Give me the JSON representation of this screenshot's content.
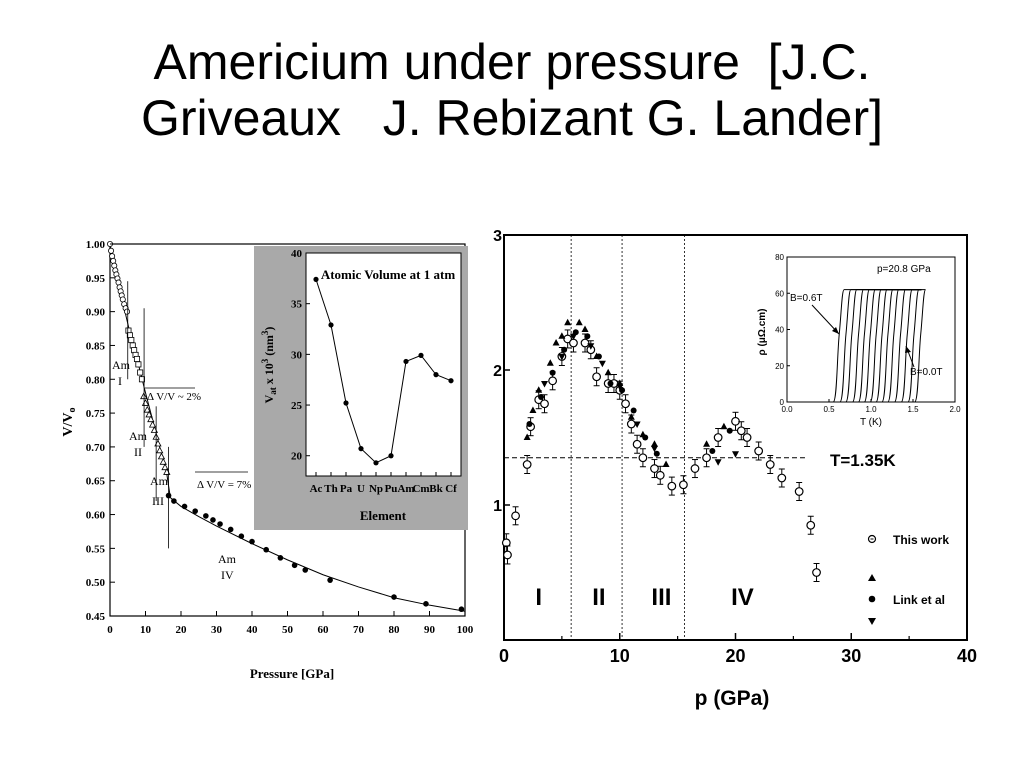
{
  "slide": {
    "title_line1": "Americium under pressure  [J.C.",
    "title_line2": "Griveaux   J. Rebizant G. Lander]"
  },
  "chart_data": [
    {
      "type": "scatter",
      "id": "volume-vs-pressure",
      "xlabel": "Pressure [GPa]",
      "ylabel": "V/V",
      "ylabel_sub": "o",
      "xlim": [
        0,
        100
      ],
      "ylim": [
        0.45,
        1.0
      ],
      "xticks": [
        0,
        10,
        20,
        30,
        40,
        50,
        60,
        70,
        80,
        90,
        100
      ],
      "yticks": [
        0.45,
        0.5,
        0.55,
        0.6,
        0.65,
        0.7,
        0.75,
        0.8,
        0.85,
        0.9,
        0.95,
        1.0
      ],
      "ytick_labels": [
        "0.45",
        "0.50",
        "0.55",
        "0.60",
        "0.65",
        "0.70",
        "0.75",
        "0.80",
        "0.85",
        "0.90",
        "0.95",
        "1.00"
      ],
      "series": [
        {
          "marker": "circle-open",
          "x": [
            0,
            0.3,
            0.6,
            0.9,
            1.2,
            1.5,
            1.8,
            2.1,
            2.4,
            2.7,
            3.0,
            3.3,
            3.6,
            4.0,
            4.4,
            4.8
          ],
          "y": [
            1.0,
            0.99,
            0.982,
            0.975,
            0.968,
            0.961,
            0.955,
            0.949,
            0.943,
            0.936,
            0.93,
            0.924,
            0.918,
            0.911,
            0.905,
            0.9
          ]
        },
        {
          "marker": "square-open",
          "x": [
            5.2,
            5.6,
            6.0,
            6.4,
            6.8,
            7.2,
            7.6,
            8.0,
            8.5,
            9.0
          ],
          "y": [
            0.872,
            0.865,
            0.858,
            0.85,
            0.843,
            0.836,
            0.83,
            0.822,
            0.81,
            0.8
          ]
        },
        {
          "marker": "triangle-open",
          "x": [
            9.5,
            10.0,
            10.5,
            11.0,
            11.5,
            12.0,
            12.5,
            13.0,
            13.5,
            14.0,
            14.5,
            15.0,
            15.5,
            16.0
          ],
          "y": [
            0.775,
            0.765,
            0.755,
            0.748,
            0.741,
            0.733,
            0.725,
            0.715,
            0.705,
            0.695,
            0.686,
            0.678,
            0.67,
            0.663
          ]
        },
        {
          "marker": "circle-filled",
          "x": [
            16.5,
            18,
            21,
            24,
            27,
            29,
            31,
            34,
            37,
            40,
            44,
            48,
            52,
            55,
            62,
            80,
            89,
            99
          ],
          "y": [
            0.628,
            0.62,
            0.612,
            0.605,
            0.598,
            0.592,
            0.586,
            0.578,
            0.568,
            0.56,
            0.548,
            0.536,
            0.525,
            0.518,
            0.503,
            0.478,
            0.468,
            0.46
          ]
        }
      ],
      "fit_curve": {
        "x": [
          0,
          2,
          4,
          6,
          8,
          10,
          12,
          14,
          16,
          17,
          20,
          25,
          30,
          40,
          50,
          60,
          70,
          80,
          90,
          100
        ],
        "y": [
          1.0,
          0.945,
          0.905,
          0.86,
          0.822,
          0.78,
          0.74,
          0.7,
          0.66,
          0.625,
          0.612,
          0.597,
          0.583,
          0.557,
          0.533,
          0.511,
          0.493,
          0.477,
          0.466,
          0.457
        ]
      },
      "annotations": {
        "am1_label_a": "Am",
        "am1_label_b": "I",
        "am2_label_a": "Am",
        "am2_label_b": "II",
        "am3_label_a": "Am",
        "am3_label_b": "III",
        "am4_label_a": "Am",
        "am4_label_b": "IV",
        "dv1": "Δ V/V ~ 2%",
        "dv2": "Δ V/V = 7%"
      }
    },
    {
      "type": "line",
      "id": "atomic-volume-inset",
      "title": "Atomic Volume at 1 atm",
      "xlabel": "Element",
      "ylabel": "V",
      "ylabel_sub": "at",
      "ylabel_rest": " x 10",
      "ylabel_sup": "3",
      "ylabel_unit": " (nm",
      "ylabel_unit_sup": "3",
      "ylabel_end": ")",
      "categories": [
        "Ac",
        "Th",
        "Pa",
        "U",
        "Np",
        "Pu",
        "Am",
        "Cm",
        "Bk",
        "Cf"
      ],
      "values": [
        37.4,
        32.9,
        25.2,
        20.7,
        19.3,
        20.0,
        29.3,
        29.9,
        28.0,
        27.4
      ],
      "ylim": [
        18,
        40
      ],
      "yticks": [
        20,
        25,
        30,
        35,
        40
      ]
    },
    {
      "type": "scatter",
      "id": "tc-vs-pressure",
      "xlabel": "p (GPa)",
      "xlim": [
        0,
        40
      ],
      "ylim": [
        0,
        3
      ],
      "xticks": [
        0,
        10,
        20,
        30,
        40
      ],
      "yticks": [
        1,
        2,
        3
      ],
      "ytick_labels": [
        "1",
        "2",
        "3"
      ],
      "threshold": {
        "y": 1.35,
        "label": "T=1.35K"
      },
      "phase_boundaries": [
        5.8,
        10.2,
        15.6
      ],
      "phase_labels": [
        "I",
        "II",
        "III",
        "IV"
      ],
      "legend": {
        "this_work": "This work",
        "link": "Link et al"
      },
      "series": [
        {
          "name": "This work",
          "marker": "circle-open-errorbar",
          "x": [
            0.2,
            0.3,
            1.0,
            2.0,
            2.3,
            3.0,
            3.5,
            4.2,
            5.0,
            5.5,
            6.0,
            7.0,
            7.5,
            8.0,
            9.0,
            9.5,
            10.0,
            10.5,
            11.0,
            11.5,
            12.0,
            13.0,
            13.5,
            14.5,
            15.5,
            16.5,
            17.5,
            18.5,
            20.0,
            20.5,
            21.0,
            22.0,
            23.0,
            24.0,
            25.5,
            26.5,
            27.0
          ],
          "y": [
            0.72,
            0.63,
            0.92,
            1.3,
            1.58,
            1.78,
            1.75,
            1.92,
            2.1,
            2.23,
            2.2,
            2.2,
            2.15,
            1.95,
            1.9,
            1.9,
            1.85,
            1.75,
            1.6,
            1.45,
            1.35,
            1.27,
            1.22,
            1.14,
            1.15,
            1.27,
            1.35,
            1.5,
            1.62,
            1.55,
            1.5,
            1.4,
            1.3,
            1.2,
            1.1,
            0.85,
            0.5
          ]
        },
        {
          "name": "Link et al",
          "marker": "triangle-up",
          "x": [
            2.0,
            2.5,
            3.0,
            4.0,
            4.5,
            5.0,
            5.5,
            6.5,
            7.0,
            8.0,
            9.0,
            10.0,
            11.0,
            12.0,
            13.0,
            14.0,
            17.5,
            19.0
          ],
          "y": [
            1.5,
            1.7,
            1.85,
            2.05,
            2.2,
            2.25,
            2.35,
            2.35,
            2.3,
            2.1,
            1.98,
            1.9,
            1.65,
            1.52,
            1.45,
            1.3,
            1.45,
            1.58
          ]
        },
        {
          "name": "Link et al",
          "marker": "circle-filled",
          "x": [
            2.2,
            3.2,
            4.2,
            5.2,
            6.2,
            7.2,
            8.2,
            9.2,
            10.2,
            11.2,
            12.2,
            13.2,
            18.0,
            19.5
          ],
          "y": [
            1.6,
            1.8,
            1.98,
            2.15,
            2.28,
            2.25,
            2.1,
            1.9,
            1.85,
            1.7,
            1.5,
            1.38,
            1.4,
            1.55
          ]
        },
        {
          "name": "Link et al",
          "marker": "triangle-down",
          "x": [
            3.5,
            5.0,
            6.0,
            7.5,
            8.5,
            10.0,
            11.5,
            13.0,
            18.5,
            20.0
          ],
          "y": [
            1.9,
            2.1,
            2.25,
            2.18,
            2.05,
            1.88,
            1.6,
            1.42,
            1.32,
            1.38
          ]
        }
      ],
      "inset": {
        "type": "line",
        "xlabel": "T (K)",
        "ylabel": "ρ (μΩ.cm)",
        "xlim": [
          0,
          2.0
        ],
        "ylim": [
          0,
          80
        ],
        "xticks": [
          0.0,
          0.5,
          1.0,
          1.5,
          2.0
        ],
        "xtick_labels": [
          "0.0",
          "0.5",
          "1.0",
          "1.5",
          "2.0"
        ],
        "yticks": [
          0,
          20,
          40,
          60,
          80
        ],
        "annotations": {
          "pressure": "p=20.8 GPa",
          "b_high": "B=0.6T",
          "b_low": "B=0.0T"
        },
        "curve_onsets_K": [
          0.55,
          0.63,
          0.7,
          0.78,
          0.85,
          0.92,
          0.99,
          1.06,
          1.13,
          1.2,
          1.28,
          1.36,
          1.44,
          1.52
        ],
        "curve_width_K": 0.13,
        "plateau": 62
      }
    }
  ]
}
